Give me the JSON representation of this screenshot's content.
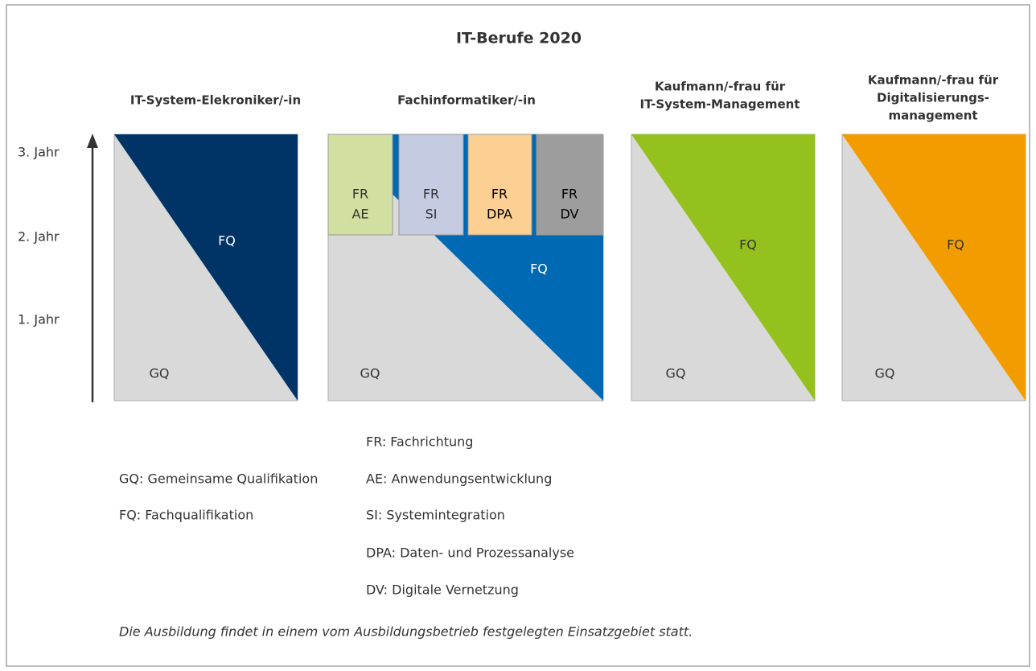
{
  "title": "IT-Berufe 2020",
  "years": [
    "3. Jahr",
    "2. Jahr",
    "1. Jahr"
  ],
  "columns": [
    {
      "title": [
        "IT-System-Elekroniker/-in"
      ],
      "fq": "FQ",
      "gq": "GQ"
    },
    {
      "title": [
        "Fachinformatiker/-in"
      ],
      "fq": "FQ",
      "gq": "GQ",
      "specializations": [
        [
          "FR",
          "AE"
        ],
        [
          "FR",
          "SI"
        ],
        [
          "FR",
          "DPA"
        ],
        [
          "FR",
          "DV"
        ]
      ]
    },
    {
      "title": [
        "Kaufmann/-frau für",
        "IT-System-Management"
      ],
      "fq": "FQ",
      "gq": "GQ"
    },
    {
      "title": [
        "Kaufmann/-frau für",
        "Digitalisierungs-",
        "management"
      ],
      "fq": "FQ",
      "gq": "GQ"
    }
  ],
  "legend_left": [
    "GQ: Gemeinsame Qualifikation",
    "FQ: Fachqualifikation"
  ],
  "legend_right": [
    "FR: Fachrichtung",
    "AE: Anwendungsentwicklung",
    "SI: Systemintegration",
    "DPA: Daten- und Prozessanalyse",
    "DV: Digitale Vernetzung"
  ],
  "footnote": "Die Ausbildung findet in einem vom Ausbildungsbetrieb festgelegten Einsatzgebiet statt."
}
